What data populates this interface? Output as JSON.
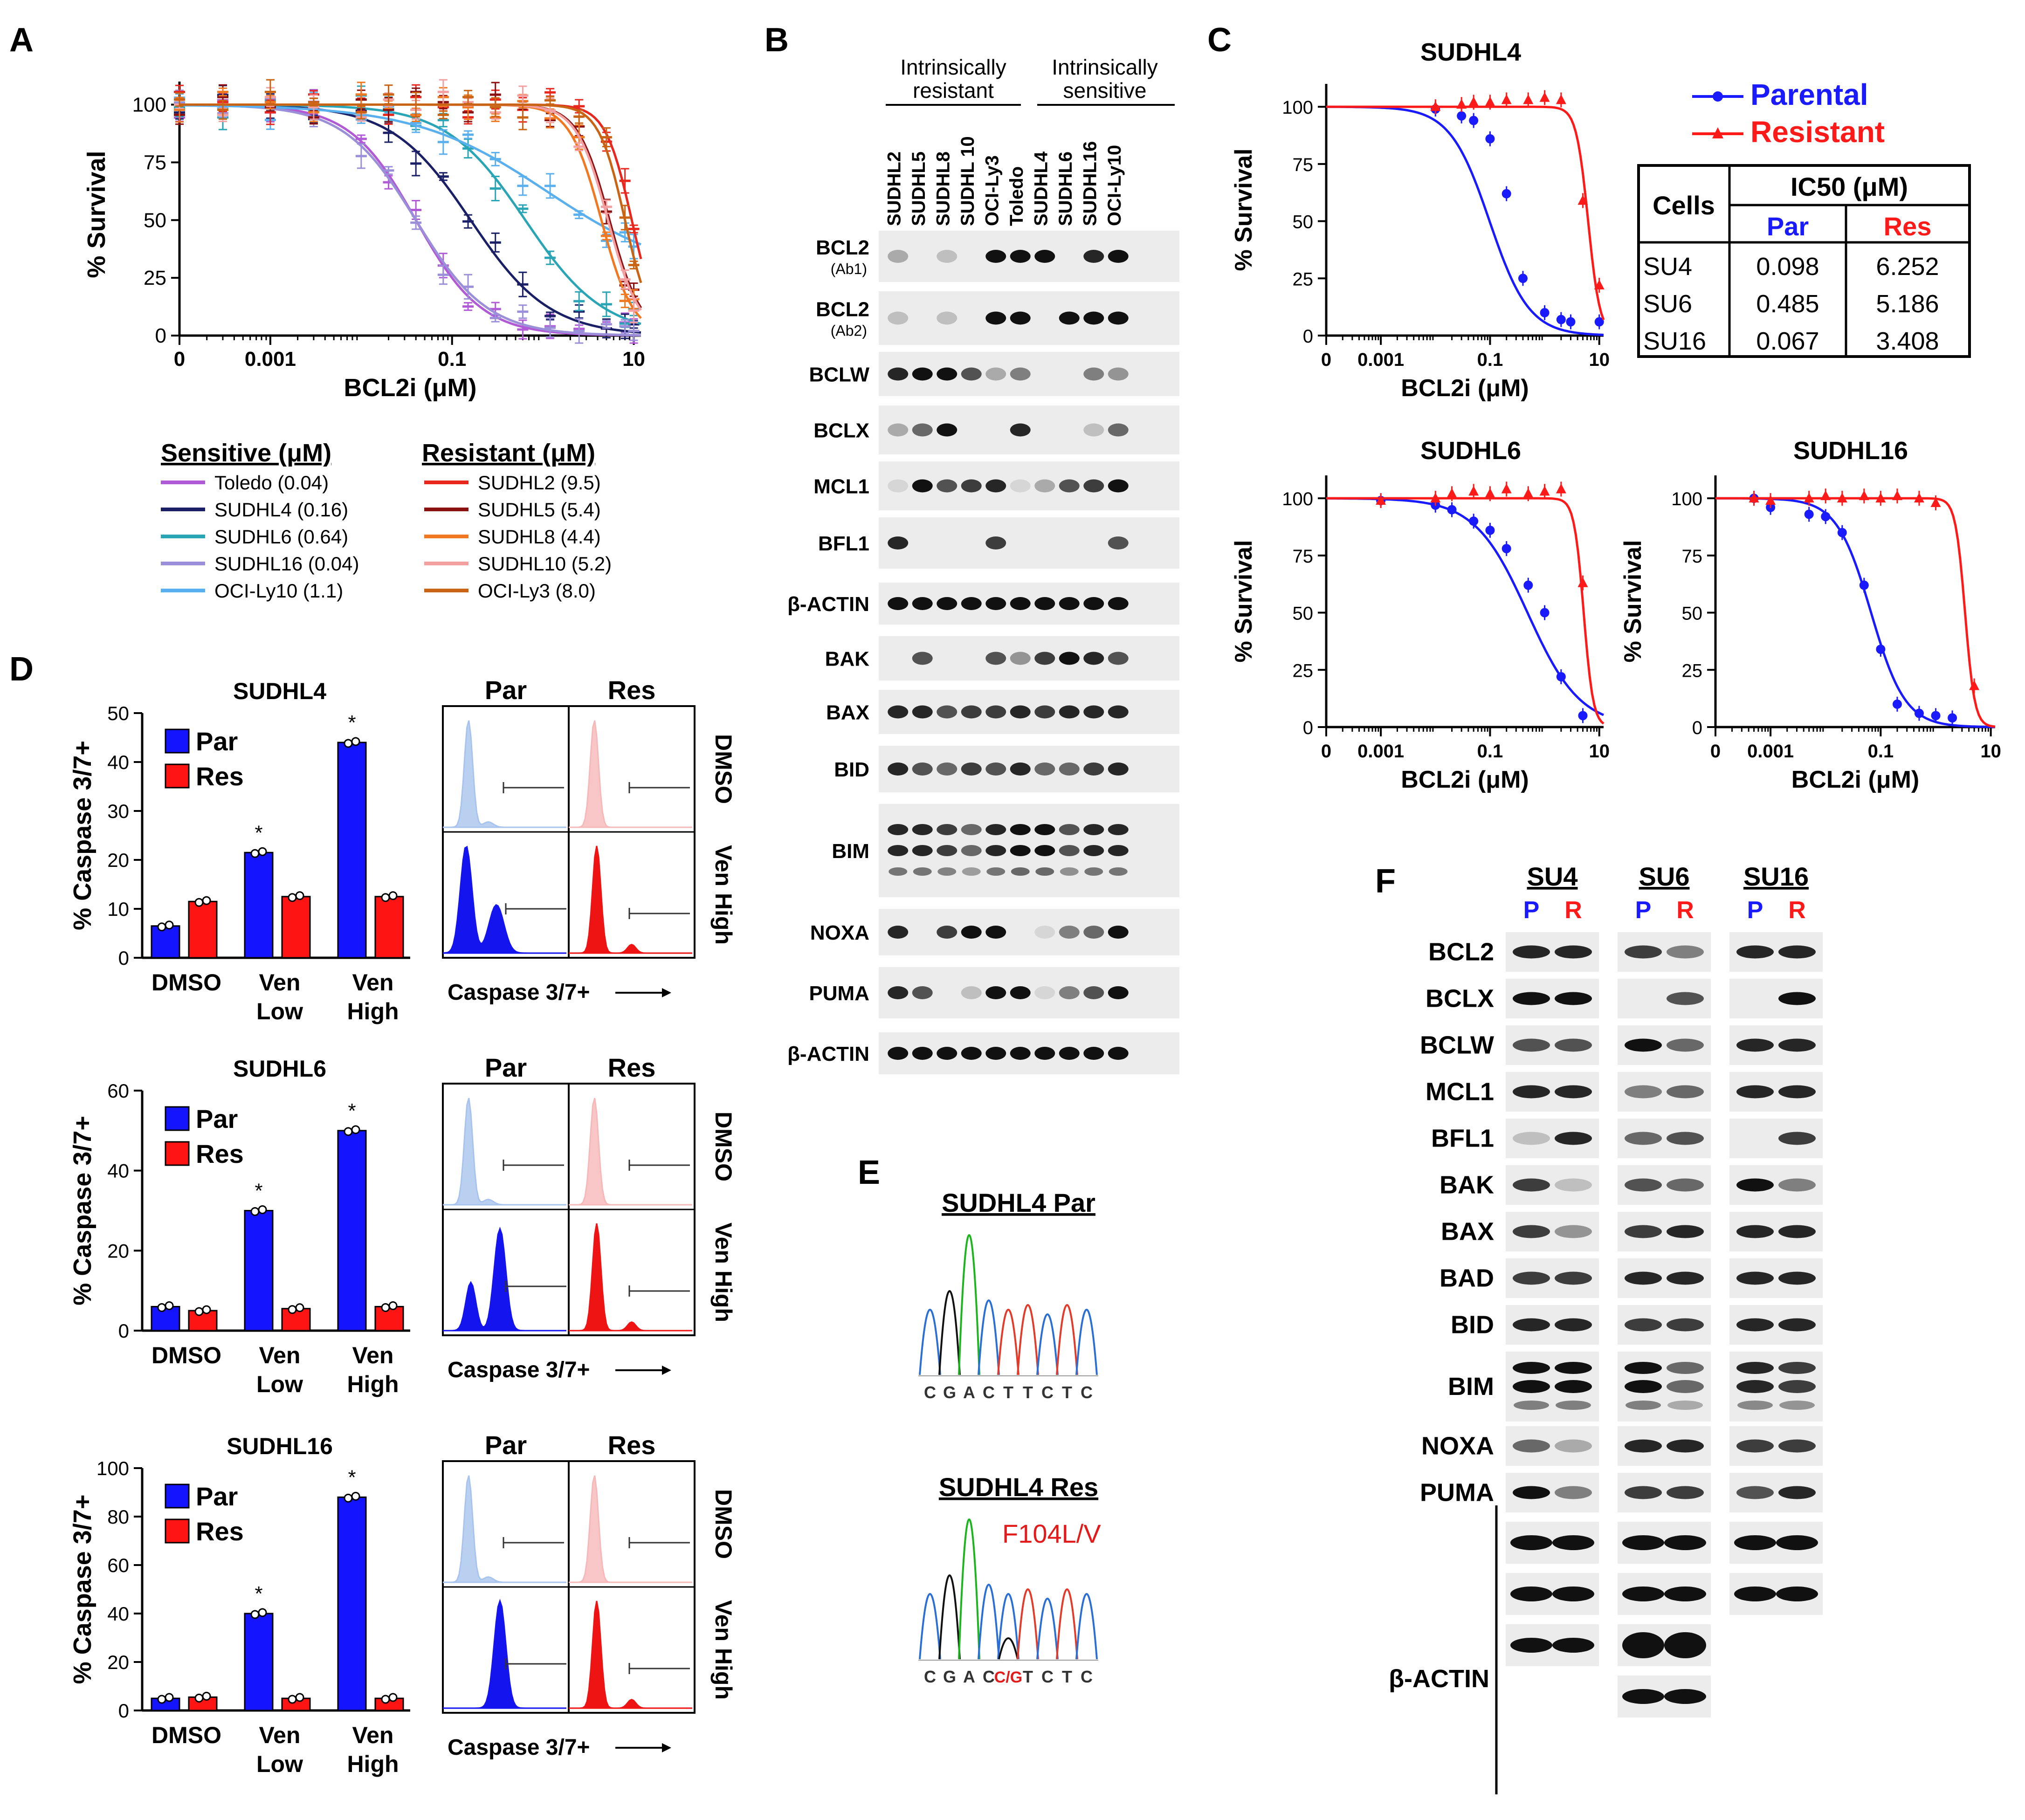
{
  "panels": {
    "A": "A",
    "B": "B",
    "C": "C",
    "D": "D",
    "E": "E",
    "F": "F"
  },
  "panelA": {
    "ylabel": "% Survival",
    "xlabel": "BCL2i (μM)",
    "xticks": [
      "0",
      "0.001",
      "0.1",
      "10"
    ],
    "yticks": [
      "0",
      "25",
      "50",
      "75",
      "100"
    ],
    "legend_sensitive_title": "Sensitive (μM)",
    "legend_resistant_title": "Resistant (μM)",
    "legend_sensitive": [
      {
        "label": "Toledo (0.04)",
        "color": "#b05ad6"
      },
      {
        "label": "SUDHL4 (0.16)",
        "color": "#1a1f66"
      },
      {
        "label": "SUDHL6 (0.64)",
        "color": "#2aa5b5"
      },
      {
        "label": "SUDHL16 (0.04)",
        "color": "#9a8fd8"
      },
      {
        "label": "OCI-Ly10 (1.1)",
        "color": "#5ab0ee"
      }
    ],
    "legend_resistant": [
      {
        "label": "SUDHL2 (9.5)",
        "color": "#e8281e"
      },
      {
        "label": "SUDHL5 (5.4)",
        "color": "#8b1010"
      },
      {
        "label": "SUDHL8 (4.4)",
        "color": "#f07820"
      },
      {
        "label": "SUDHL10 (5.2)",
        "color": "#f4a0a0"
      },
      {
        "label": "OCI-Ly3 (8.0)",
        "color": "#c86414"
      }
    ]
  },
  "panelB": {
    "group_resistant_lines": [
      "Intrinsically",
      "resistant"
    ],
    "group_sensitive_lines": [
      "Intrinsically",
      "sensitive"
    ],
    "lanes": [
      "SUDHL2",
      "SUDHL5",
      "SUDHL8",
      "SUDHL 10",
      "OCI-Ly3",
      "Toledo",
      "SUDHL4",
      "SUDHL6",
      "SUDHL16",
      "OCI-Ly10"
    ],
    "rows": [
      {
        "label": "BCL2",
        "sub": "(Ab1)"
      },
      {
        "label": "BCL2",
        "sub": "(Ab2)"
      },
      {
        "label": "BCLW",
        "sub": ""
      },
      {
        "label": "BCLX",
        "sub": ""
      },
      {
        "label": "MCL1",
        "sub": ""
      },
      {
        "label": "BFL1",
        "sub": ""
      },
      {
        "label": "β-ACTIN",
        "sub": ""
      },
      {
        "label": "BAK",
        "sub": ""
      },
      {
        "label": "BAX",
        "sub": ""
      },
      {
        "label": "BID",
        "sub": ""
      },
      {
        "label": "BIM",
        "sub": ""
      },
      {
        "label": "NOXA",
        "sub": ""
      },
      {
        "label": "PUMA",
        "sub": ""
      },
      {
        "label": "β-ACTIN",
        "sub": ""
      }
    ]
  },
  "panelC": {
    "titles": [
      "SUDHL4",
      "SUDHL6",
      "SUDHL16"
    ],
    "ylabel": "% Survival",
    "xlabel": "BCL2i (μM)",
    "xticks": [
      "0",
      "0.001",
      "0.1",
      "10"
    ],
    "yticks": [
      "0",
      "25",
      "50",
      "75",
      "100"
    ],
    "legend": [
      {
        "label": "Parental",
        "color": "#1a1aff"
      },
      {
        "label": "Resistant",
        "color": "#ff1a1a"
      }
    ],
    "table": {
      "col_cells": "Cells",
      "col_ic50": "IC50 (μM)",
      "col_par": "Par",
      "col_res": "Res",
      "rows": [
        {
          "cell": "SU4",
          "par": "0.098",
          "res": "6.252"
        },
        {
          "cell": "SU6",
          "par": "0.485",
          "res": "5.186"
        },
        {
          "cell": "SU16",
          "par": "0.067",
          "res": "3.408"
        }
      ]
    }
  },
  "panelD": {
    "ylabel": "% Caspase 3/7+",
    "legend_par": "Par",
    "legend_res": "Res",
    "star": "*",
    "categories_line1": [
      "DMSO",
      "Ven",
      "Ven"
    ],
    "categories_line2": [
      "",
      "Low",
      "High"
    ],
    "flow_par": "Par",
    "flow_res": "Res",
    "flow_dmso": "DMSO",
    "flow_venhigh": "Ven High",
    "flow_xlabel": "Caspase 3/7+"
  },
  "panelE": {
    "par_title": "SUDHL4 Par",
    "res_title": "SUDHL4 Res",
    "mutation": "F104L/V",
    "par_bases": [
      "C",
      "G",
      "A",
      "C",
      "T",
      "T",
      "C",
      "T",
      "C"
    ],
    "res_bases": [
      "C",
      "G",
      "A",
      "C",
      "C/G",
      "T",
      "C",
      "T",
      "C"
    ]
  },
  "panelF": {
    "groups": [
      {
        "label": "SU4",
        "p": "P",
        "r": "R"
      },
      {
        "label": "SU6",
        "p": "P",
        "r": "R"
      },
      {
        "label": "SU16",
        "p": "P",
        "r": "R"
      }
    ],
    "rows": [
      "BCL2",
      "BCLX",
      "BCLW",
      "MCL1",
      "BFL1",
      "BAK",
      "BAX",
      "BAD",
      "BID",
      "BIM",
      "NOXA",
      "PUMA"
    ],
    "actin_label": "β-ACTIN"
  },
  "chart_data": [
    {
      "id": "A",
      "type": "line",
      "title": "",
      "xlabel": "BCL2i (μM)",
      "ylabel": "% Survival",
      "xscale": "log",
      "xlim": [
        0.0001,
        12
      ],
      "ylim": [
        0,
        110
      ],
      "series": [
        {
          "name": "Toledo",
          "ic50": 0.04,
          "hill": 1.2,
          "color": "#b05ad6"
        },
        {
          "name": "SUDHL4",
          "ic50": 0.16,
          "hill": 1.0,
          "color": "#1a1f66"
        },
        {
          "name": "SUDHL6",
          "ic50": 0.64,
          "hill": 1.0,
          "color": "#2aa5b5"
        },
        {
          "name": "SUDHL16",
          "ic50": 0.04,
          "hill": 1.1,
          "color": "#9a8fd8"
        },
        {
          "name": "OCI-Ly10",
          "ic50": 1.1,
          "hill": 0.6,
          "bottom": 25,
          "color": "#5ab0ee"
        },
        {
          "name": "SUDHL2",
          "ic50": 9.5,
          "hill": 3.0,
          "color": "#e8281e"
        },
        {
          "name": "SUDHL5",
          "ic50": 5.4,
          "hill": 2.5,
          "color": "#8b1010"
        },
        {
          "name": "SUDHL8",
          "ic50": 4.4,
          "hill": 2.5,
          "color": "#f07820"
        },
        {
          "name": "SUDHL10",
          "ic50": 5.2,
          "hill": 2.5,
          "color": "#f4a0a0"
        },
        {
          "name": "OCI-Ly3",
          "ic50": 8.0,
          "hill": 3.0,
          "color": "#c86414"
        }
      ]
    },
    {
      "id": "C-SUDHL4",
      "type": "line",
      "title": "SUDHL4",
      "xscale": "log",
      "xlim": [
        0.0001,
        12
      ],
      "ylim": [
        0,
        110
      ],
      "series": [
        {
          "name": "Parental",
          "ic50": 0.098,
          "hill": 1.2,
          "color": "#1a1aff",
          "x": [
            0.01,
            0.03,
            0.05,
            0.1,
            0.2,
            0.4,
            1,
            2,
            3,
            10
          ],
          "y": [
            99,
            96,
            94,
            86,
            62,
            25,
            10,
            7,
            6,
            6
          ]
        },
        {
          "name": "Resistant",
          "ic50": 6.252,
          "hill": 4,
          "color": "#ff1a1a",
          "x": [
            0.01,
            0.03,
            0.05,
            0.1,
            0.2,
            0.5,
            1,
            2,
            5,
            10
          ],
          "y": [
            100,
            101,
            102,
            102,
            103,
            103,
            104,
            103,
            59,
            22
          ]
        }
      ]
    },
    {
      "id": "C-SUDHL6",
      "type": "line",
      "title": "SUDHL6",
      "xscale": "log",
      "xlim": [
        0.0001,
        12
      ],
      "ylim": [
        0,
        110
      ],
      "series": [
        {
          "name": "Parental",
          "ic50": 0.485,
          "hill": 0.9,
          "color": "#1a1aff",
          "x": [
            0.001,
            0.01,
            0.02,
            0.05,
            0.1,
            0.2,
            0.5,
            1,
            2,
            5
          ],
          "y": [
            99,
            97,
            95,
            90,
            86,
            78,
            62,
            50,
            22,
            5
          ]
        },
        {
          "name": "Resistant",
          "ic50": 5.186,
          "hill": 5,
          "color": "#ff1a1a",
          "x": [
            0.001,
            0.01,
            0.02,
            0.05,
            0.1,
            0.2,
            0.5,
            1,
            2,
            5
          ],
          "y": [
            99,
            100,
            102,
            103,
            102,
            104,
            102,
            103,
            104,
            63
          ]
        }
      ]
    },
    {
      "id": "C-SUDHL16",
      "type": "line",
      "title": "SUDHL16",
      "xscale": "log",
      "xlim": [
        0.0001,
        12
      ],
      "ylim": [
        0,
        110
      ],
      "series": [
        {
          "name": "Parental",
          "ic50": 0.067,
          "hill": 1.4,
          "color": "#1a1aff",
          "x": [
            0.0005,
            0.001,
            0.005,
            0.01,
            0.02,
            0.05,
            0.1,
            0.2,
            0.5,
            1,
            2
          ],
          "y": [
            100,
            96,
            93,
            92,
            85,
            62,
            34,
            10,
            6,
            5,
            4
          ]
        },
        {
          "name": "Resistant",
          "ic50": 3.408,
          "hill": 5,
          "color": "#ff1a1a",
          "x": [
            0.0005,
            0.001,
            0.005,
            0.01,
            0.02,
            0.05,
            0.1,
            0.2,
            0.5,
            1,
            5
          ],
          "y": [
            100,
            99,
            100,
            101,
            100,
            101,
            100,
            101,
            100,
            98,
            18
          ]
        }
      ]
    },
    {
      "id": "D-SUDHL4",
      "type": "bar",
      "title": "SUDHL4",
      "ylabel": "% Caspase 3/7+",
      "categories": [
        "DMSO",
        "Ven Low",
        "Ven High"
      ],
      "ylim": [
        0,
        50
      ],
      "yticks": [
        0,
        10,
        20,
        30,
        40,
        50
      ],
      "series": [
        {
          "name": "Par",
          "values": [
            6.5,
            21.5,
            44
          ],
          "color": "#1414ff"
        },
        {
          "name": "Res",
          "values": [
            11.5,
            12.5,
            12.5
          ],
          "color": "#ff1414"
        }
      ],
      "significant": [
        false,
        true,
        true
      ]
    },
    {
      "id": "D-SUDHL6",
      "type": "bar",
      "title": "SUDHL6",
      "ylabel": "% Caspase 3/7+",
      "categories": [
        "DMSO",
        "Ven Low",
        "Ven High"
      ],
      "ylim": [
        0,
        60
      ],
      "yticks": [
        0,
        20,
        40,
        60
      ],
      "series": [
        {
          "name": "Par",
          "values": [
            6,
            30,
            50
          ],
          "color": "#1414ff"
        },
        {
          "name": "Res",
          "values": [
            5,
            5.5,
            6
          ],
          "color": "#ff1414"
        }
      ],
      "significant": [
        false,
        true,
        true
      ]
    },
    {
      "id": "D-SUDHL16",
      "type": "bar",
      "title": "SUDHL16",
      "ylabel": "% Caspase 3/7+",
      "categories": [
        "DMSO",
        "Ven Low",
        "Ven High"
      ],
      "ylim": [
        0,
        100
      ],
      "yticks": [
        0,
        20,
        40,
        60,
        80,
        100
      ],
      "series": [
        {
          "name": "Par",
          "values": [
            5,
            40,
            88
          ],
          "color": "#1414ff"
        },
        {
          "name": "Res",
          "values": [
            5.5,
            5,
            5
          ],
          "color": "#ff1414"
        }
      ],
      "significant": [
        false,
        true,
        true
      ]
    }
  ]
}
